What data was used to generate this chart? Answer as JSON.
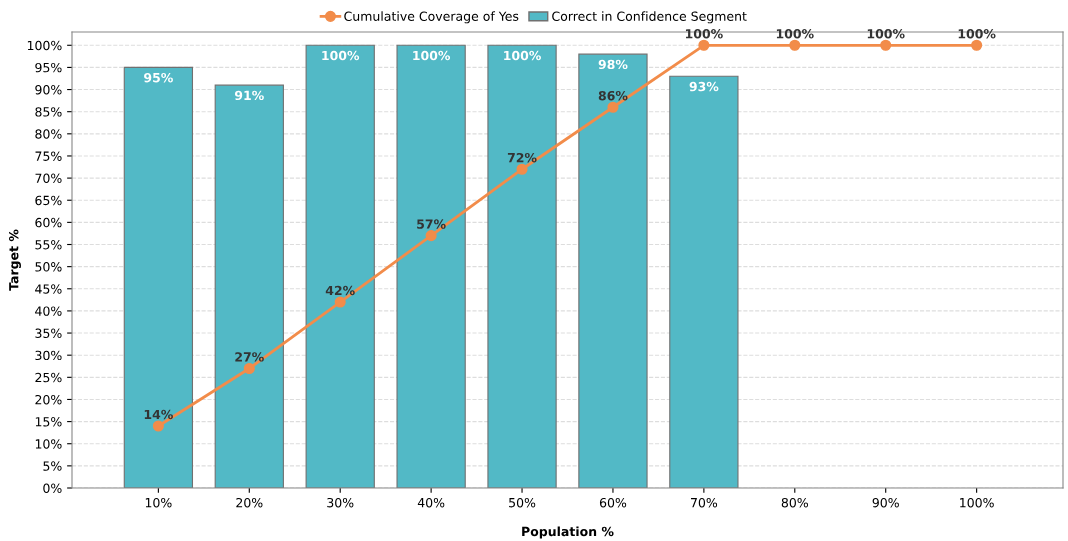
{
  "chart_data": {
    "type": "bar",
    "xlabel": "Population %",
    "ylabel": "Target %",
    "categories": [
      "10%",
      "20%",
      "30%",
      "40%",
      "50%",
      "60%",
      "70%",
      "80%",
      "90%",
      "100%"
    ],
    "series": [
      {
        "name": "Cumulative Coverage of Yes",
        "type": "line",
        "color": "#f28c4a",
        "values": [
          14,
          27,
          42,
          57,
          72,
          86,
          100,
          100,
          100,
          100
        ],
        "value_labels": [
          "14%",
          "27%",
          "42%",
          "57%",
          "72%",
          "86%",
          "100%",
          "100%",
          "100%",
          "100%"
        ]
      },
      {
        "name": "Correct in Confidence Segment",
        "color": "#52b9c6",
        "values": [
          95,
          91,
          100,
          100,
          100,
          98,
          93,
          null,
          null,
          null
        ],
        "value_labels": [
          "95%",
          "91%",
          "100%",
          "100%",
          "100%",
          "98%",
          "93%",
          null,
          null,
          null
        ]
      }
    ],
    "ylim": [
      0,
      103
    ],
    "yticks": [
      {
        "value": 0,
        "label": "0%"
      },
      {
        "value": 5,
        "label": "5%"
      },
      {
        "value": 10,
        "label": "10%"
      },
      {
        "value": 15,
        "label": "15%"
      },
      {
        "value": 20,
        "label": "20%"
      },
      {
        "value": 25,
        "label": "25%"
      },
      {
        "value": 30,
        "label": "30%"
      },
      {
        "value": 35,
        "label": "35%"
      },
      {
        "value": 40,
        "label": "40%"
      },
      {
        "value": 45,
        "label": "45%"
      },
      {
        "value": 50,
        "label": "50%"
      },
      {
        "value": 55,
        "label": "55%"
      },
      {
        "value": 60,
        "label": "60%"
      },
      {
        "value": 65,
        "label": "65%"
      },
      {
        "value": 70,
        "label": "70%"
      },
      {
        "value": 75,
        "label": "75%"
      },
      {
        "value": 80,
        "label": "80%"
      },
      {
        "value": 85,
        "label": "85%"
      },
      {
        "value": 90,
        "label": "90%"
      },
      {
        "value": 95,
        "label": "95%"
      },
      {
        "value": 100,
        "label": "100%"
      }
    ],
    "grid": "y",
    "legend": "top",
    "marker": "circle",
    "line_style": "solid"
  }
}
